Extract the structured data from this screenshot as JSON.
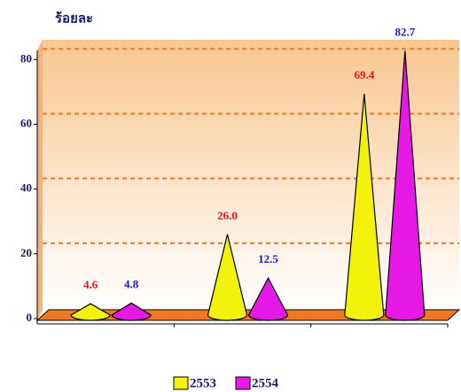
{
  "chart_data": {
    "type": "cone",
    "y_label": "ร้อยละ",
    "categories": [
      null,
      null,
      null
    ],
    "series": [
      {
        "name": "2553",
        "color": "#f2f20a",
        "label_color": "#e8141e",
        "values": [
          4.6,
          26.0,
          69.4
        ],
        "value_labels": [
          "4.6",
          "26.0",
          "69.4"
        ]
      },
      {
        "name": "2554",
        "color": "#e619e6",
        "label_color": "#1a1ad0",
        "values": [
          4.8,
          12.5,
          82.7
        ],
        "value_labels": [
          "4.8",
          "12.5",
          "82.7"
        ]
      }
    ],
    "ylim": [
      0,
      85
    ],
    "yticks": [
      0,
      20,
      40,
      60,
      80
    ],
    "grid": true
  }
}
